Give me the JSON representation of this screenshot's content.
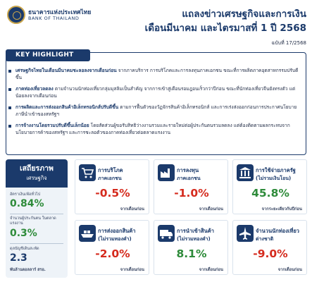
{
  "header": {
    "bank_name_th": "ธนาคารแห่งประเทศไทย",
    "bank_name_en": "BANK OF THAILAND",
    "title_line1": "แถลงข่าวเศรษฐกิจและการเงิน",
    "title_line2": "เดือนมีนาคม และไตรมาสที่ 1 ปี 2568",
    "issue": "ฉบับที่ 17/2568"
  },
  "key_highlight": {
    "heading": "KEY HIGHLIGHT",
    "items": [
      {
        "bold": "เศรษฐกิจไทยในเดือนมีนาคมชะลอลงจากเดือนก่อน",
        "text": " จากภาคบริการ การบริโภคและการลงทุนภาคเอกชน ขณะที่การผลิตภาคอุตสาหกรรมปรับดีขึ้น"
      },
      {
        "bold": "ภาคท่องเที่ยวลดลง",
        "text": " ตามจำนวนนักท่องเที่ยวกลุ่มมุสลิมเป็นสำคัญ จากการเข้าสู่เดือนรอมฎอนเร็วกว่าปีก่อน ขณะที่นักท่องเที่ยวจีนยังทรงตัว แต่น้อยลงจากเดือนก่อน"
      },
      {
        "bold": "การผลิตและการส่งออกสินค้าอิเล็กทรอนิกส์ปรับดีขึ้น",
        "text": " ตามการฟื้นตัวของวัฏจักรสินค้าอิเล็กทรอนิกส์ และการเร่งส่งออกก่อนการประกาศนโยบายภาษีนำเข้าของสหรัฐฯ"
      },
      {
        "bold": "การจ้างงานโดยรวมปรับดีขึ้นเล็กน้อย",
        "text": " โดยสัดส่วนผู้ขอรับสิทธิว่างงานรวมและรายใหม่ต่อผู้ประกันตนรวมลดลง แต่ต้องติดตามผลกระทบจากนโยบายการค้าของสหรัฐฯ และการชะลอตัวของภาคท่องเที่ยวต่อตลาดแรงงาน"
      }
    ]
  },
  "stability": {
    "title": "เสถียรภาพ",
    "subtitle": "เศรษฐกิจ",
    "items": [
      {
        "label": "อัตราเงินเฟ้อทั่วไป",
        "value": "0.84%"
      },
      {
        "label": "จำนวนผู้ประกันตน ในตลาดแรงงาน",
        "value": "0.3%"
      },
      {
        "label": "ดุลบัญชีเดินสะพัด",
        "value": "2.3",
        "note": "พันล้านดอลลาร์ สรอ."
      }
    ]
  },
  "indicators": [
    {
      "label1": "การบริโภค",
      "label2": "ภาคเอกชน",
      "value": "-0.5%",
      "note": "จากเดือนก่อน",
      "icon": "shopping-cart-icon",
      "trend": "neg"
    },
    {
      "label1": "การลงทุน",
      "label2": "ภาคเอกชน",
      "value": "-1.0%",
      "note": "จากเดือนก่อน",
      "icon": "factory-icon",
      "trend": "neg"
    },
    {
      "label1": "การใช้จ่ายภาครัฐ",
      "label2": "(ไม่รวมเงินโอน)",
      "value": "45.8%",
      "note": "จากระยะเดียวกันปีก่อน",
      "icon": "government-building-icon",
      "trend": "pos"
    },
    {
      "label1": "การส่งออกสินค้า",
      "label2": "(ไม่รวมทองคำ)",
      "value": "-2.0%",
      "note": "จากเดือนก่อน",
      "icon": "cargo-ship-icon",
      "trend": "neg"
    },
    {
      "label1": "การนำเข้าสินค้า",
      "label2": "(ไม่รวมทองคำ)",
      "value": "8.1%",
      "note": "จากเดือนก่อน",
      "icon": "container-truck-icon",
      "trend": "pos"
    },
    {
      "label1": "จำนวนนักท่องเที่ยว",
      "label2": "ต่างชาติ",
      "value": "-9.0%",
      "note": "จากเดือนก่อน",
      "icon": "airplane-icon",
      "trend": "neg"
    }
  ]
}
